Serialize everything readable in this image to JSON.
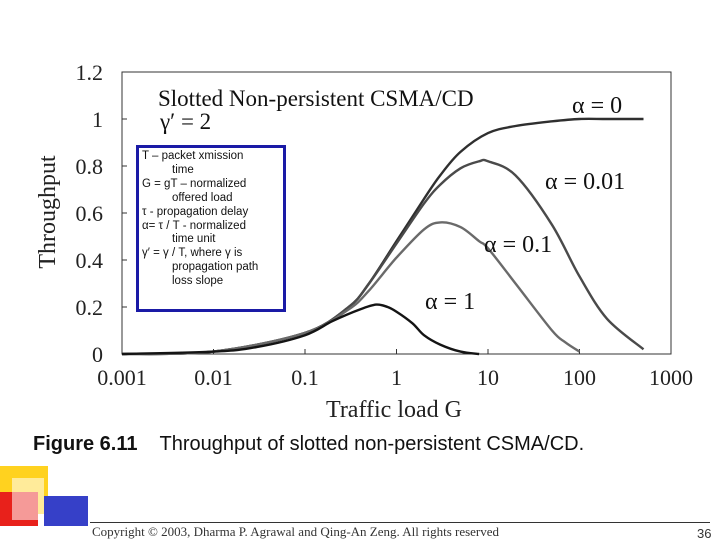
{
  "chart_data": {
    "type": "line",
    "title": "Slotted Non-persistent CSMA/CD",
    "subtitle": "γ′ = 2",
    "xlabel": "Traffic load G",
    "ylabel": "Throughput",
    "xscale": "log",
    "xlim": [
      0.001,
      1000
    ],
    "ylim": [
      0,
      1.2
    ],
    "xticks": [
      "0.001",
      "0.01",
      "0.1",
      "1",
      "10",
      "100",
      "1000"
    ],
    "yticks": [
      "0",
      "0.2",
      "0.4",
      "0.6",
      "0.8",
      "1",
      "1.2"
    ],
    "series": [
      {
        "name": "α = 0",
        "color": "#2f2f2f",
        "x": [
          0.001,
          0.01,
          0.1,
          0.3,
          0.5,
          1,
          2,
          3,
          5,
          10,
          20,
          50,
          100,
          200,
          500
        ],
        "y": [
          0.0,
          0.01,
          0.09,
          0.2,
          0.3,
          0.48,
          0.66,
          0.76,
          0.86,
          0.94,
          0.97,
          0.99,
          1.0,
          1.0,
          1.0
        ]
      },
      {
        "name": "α = 0.01",
        "color": "#4a4a4a",
        "x": [
          0.001,
          0.01,
          0.1,
          0.3,
          0.5,
          1,
          2,
          3,
          5,
          8,
          10,
          20,
          50,
          100,
          200,
          500
        ],
        "y": [
          0.0,
          0.01,
          0.09,
          0.2,
          0.3,
          0.47,
          0.64,
          0.72,
          0.79,
          0.82,
          0.82,
          0.76,
          0.55,
          0.33,
          0.15,
          0.02
        ]
      },
      {
        "name": "α = 0.1",
        "color": "#6a6a6a",
        "x": [
          0.001,
          0.01,
          0.1,
          0.3,
          0.5,
          1,
          2,
          3,
          5,
          8,
          10,
          20,
          50,
          70,
          100
        ],
        "y": [
          0.0,
          0.01,
          0.09,
          0.19,
          0.27,
          0.41,
          0.53,
          0.56,
          0.54,
          0.48,
          0.45,
          0.3,
          0.1,
          0.05,
          0.01
        ]
      },
      {
        "name": "α = 1",
        "color": "#141414",
        "x": [
          0.001,
          0.01,
          0.03,
          0.1,
          0.2,
          0.4,
          0.6,
          0.8,
          1,
          1.5,
          2,
          3,
          5,
          8
        ],
        "y": [
          0.0,
          0.01,
          0.03,
          0.08,
          0.14,
          0.19,
          0.21,
          0.2,
          0.18,
          0.13,
          0.08,
          0.04,
          0.01,
          0.0
        ]
      }
    ],
    "annotations": [
      "α = 0",
      "α = 0.01",
      "α = 0.1",
      "α = 1"
    ]
  },
  "definitions": [
    {
      "text": "T – packet xmission",
      "indent": false
    },
    {
      "text": "time",
      "indent": true
    },
    {
      "text": "G = gT – normalized",
      "indent": false
    },
    {
      "text": "offered load",
      "indent": true
    },
    {
      "text": "τ - propagation delay",
      "indent": false
    },
    {
      "text": "α= τ / T - normalized",
      "indent": false
    },
    {
      "text": "time unit",
      "indent": true
    },
    {
      "text": "γ′ = γ / T, where γ is",
      "indent": false
    },
    {
      "text": "propagation path",
      "indent": true
    },
    {
      "text": "loss slope",
      "indent": true
    }
  ],
  "figure": {
    "number": "Figure 6.11",
    "caption": "Throughput of slotted non-persistent CSMA/CD."
  },
  "footer": {
    "copyright": "Copyright © 2003, Dharma P. Agrawal and Qing-An Zeng. All rights reserved",
    "page": "36"
  },
  "colors": {
    "box_border": "#1a1aa6",
    "accent_yellow": "#ffd21f",
    "accent_red": "#e8211b",
    "accent_blue": "#3640c8"
  }
}
